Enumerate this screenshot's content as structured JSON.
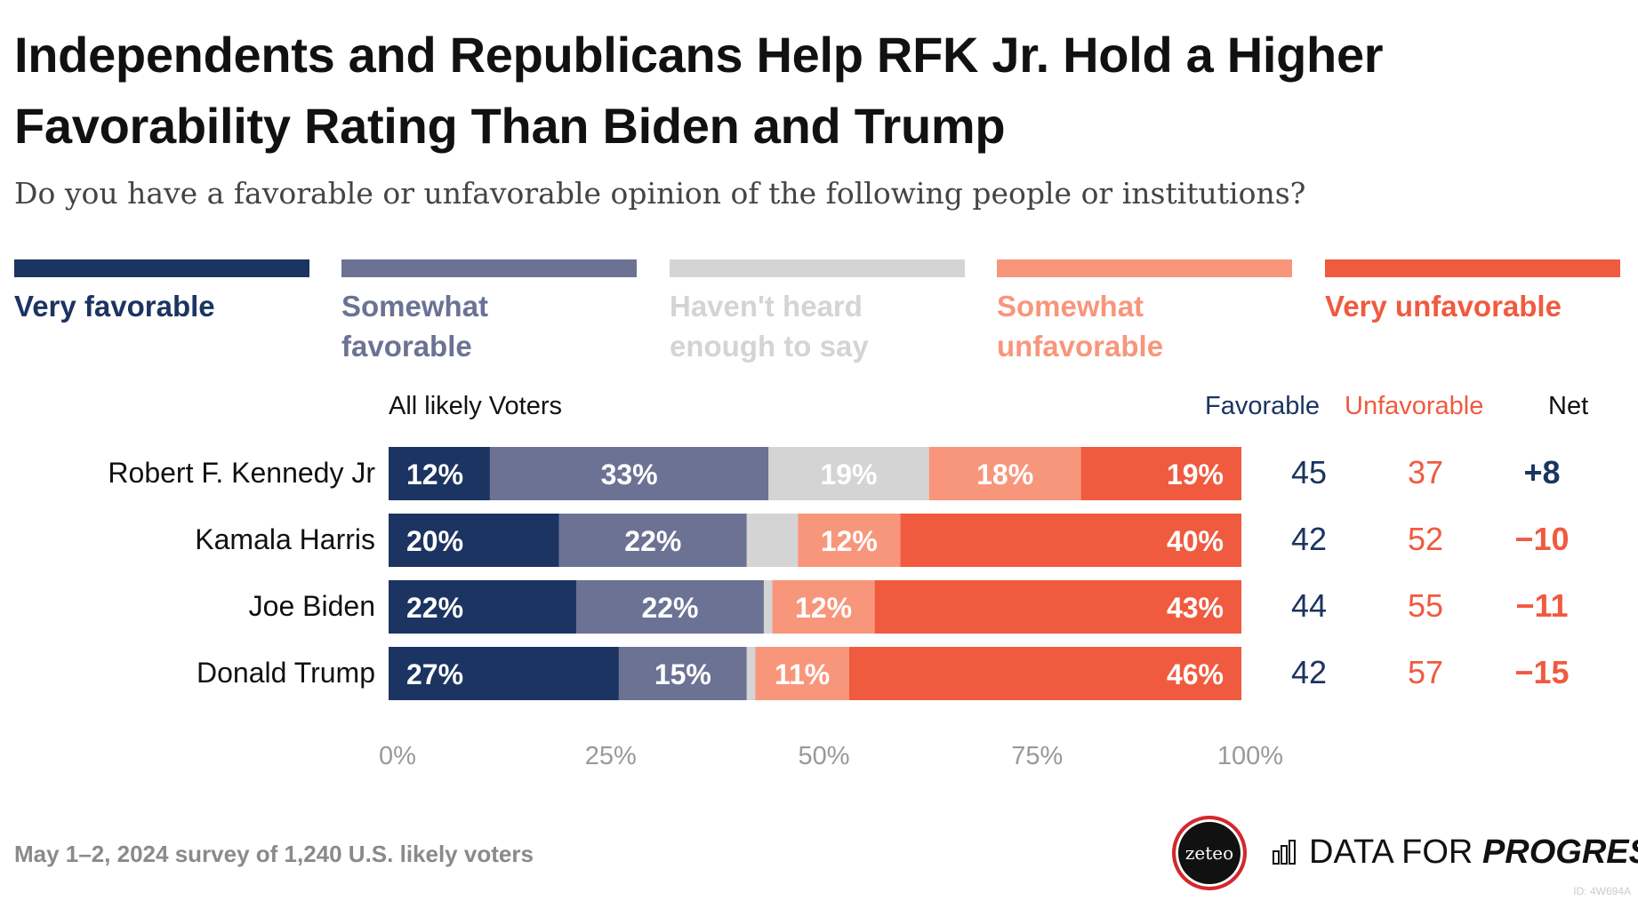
{
  "title": "Independents and Republicans Help RFK Jr. Hold a Higher Favorability Rating Than Biden and Trump",
  "subtitle": "Do you have a favorable or unfavorable opinion of the following people or institutions?",
  "legend": [
    {
      "label": "Very favorable",
      "color": "#1c3461"
    },
    {
      "label": "Somewhat favorable",
      "color": "#6b7294"
    },
    {
      "label": "Haven't heard enough to say",
      "color": "#d4d4d4"
    },
    {
      "label": "Somewhat unfavorable",
      "color": "#f8967b"
    },
    {
      "label": "Very unfavorable",
      "color": "#f05a3f"
    }
  ],
  "group_label": "All likely Voters",
  "columns": {
    "favorable": "Favorable",
    "unfavorable": "Unfavorable",
    "net": "Net"
  },
  "colors": {
    "favorable_text": "#1c3461",
    "unfavorable_text": "#f05a3f",
    "net_negative": "#f05a3f",
    "net_positive": "#1c3461"
  },
  "chart_data": {
    "type": "bar",
    "orientation": "horizontal-stacked",
    "title": "Independents and Republicans Help RFK Jr. Hold a Higher Favorability Rating Than Biden and Trump",
    "categories": [
      "Robert F. Kennedy Jr",
      "Kamala Harris",
      "Joe Biden",
      "Donald Trump"
    ],
    "series": [
      {
        "name": "Very favorable",
        "values": [
          12,
          20,
          22,
          27
        ]
      },
      {
        "name": "Somewhat favorable",
        "values": [
          33,
          22,
          22,
          15
        ]
      },
      {
        "name": "Haven't heard enough to say",
        "values": [
          19,
          6,
          1,
          1
        ]
      },
      {
        "name": "Somewhat unfavorable",
        "values": [
          18,
          12,
          12,
          11
        ]
      },
      {
        "name": "Very unfavorable",
        "values": [
          19,
          40,
          43,
          46
        ]
      }
    ],
    "segment_labels": [
      [
        "12%",
        "33%",
        "19%",
        "18%",
        "19%"
      ],
      [
        "20%",
        "22%",
        "",
        "12%",
        "40%"
      ],
      [
        "22%",
        "22%",
        "",
        "12%",
        "43%"
      ],
      [
        "27%",
        "15%",
        "",
        "11%",
        "46%"
      ]
    ],
    "favorable": [
      45,
      42,
      44,
      42
    ],
    "unfavorable": [
      37,
      52,
      55,
      57
    ],
    "net": [
      "+8",
      "−10",
      "−11",
      "−15"
    ],
    "xlim": [
      0,
      100
    ],
    "xticks": [
      "0%",
      "25%",
      "50%",
      "75%",
      "100%"
    ],
    "grid": false,
    "legend_position": "top"
  },
  "footer": {
    "note": "May 1–2, 2024 survey of 1,240 U.S. likely voters",
    "zeteo": "zeteo",
    "brand_plain": "DATA FOR",
    "brand_bold": "PROGRESS",
    "id": "ID: 4W694A"
  }
}
